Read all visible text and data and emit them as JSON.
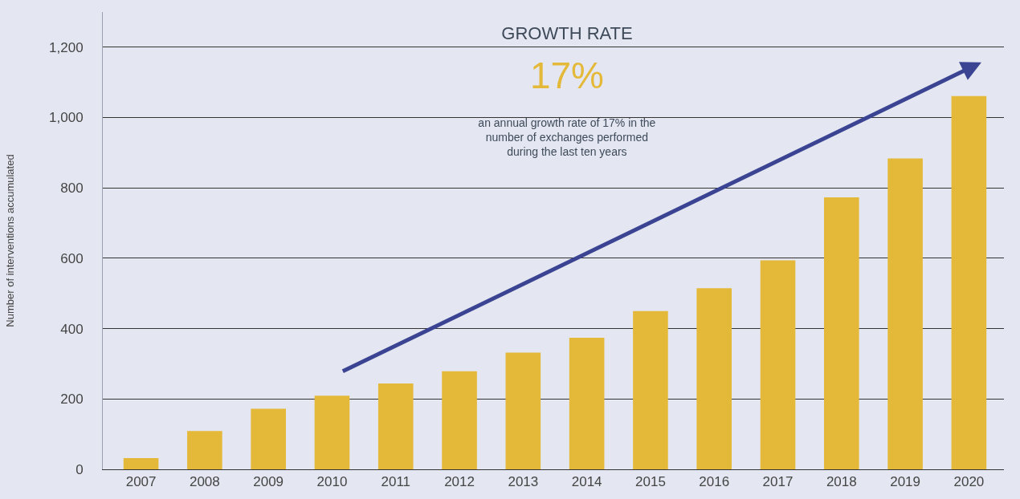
{
  "chart_data": {
    "type": "bar",
    "ylabel": "Number of interventions accumulated",
    "categories": [
      "2007",
      "2008",
      "2009",
      "2010",
      "2011",
      "2012",
      "2013",
      "2014",
      "2015",
      "2016",
      "2017",
      "2018",
      "2019",
      "2020"
    ],
    "series": [
      {
        "color": "#e4b939",
        "values": [
          32,
          109,
          172,
          209,
          244,
          279,
          332,
          374,
          450,
          515,
          594,
          773,
          884,
          1061
        ]
      }
    ],
    "ylim": [
      0,
      1300
    ],
    "yticks": [
      0,
      200,
      400,
      600,
      800,
      {
        "value": 1000,
        "label": "1,000"
      },
      {
        "value": 1200,
        "label": "1,200"
      }
    ],
    "grid": "y",
    "annotations": [
      "GROWTH RATE",
      "17%",
      "an annual growth rate of 17% in the\nnumber of exchanges performed\nduring the last ten years"
    ]
  }
}
